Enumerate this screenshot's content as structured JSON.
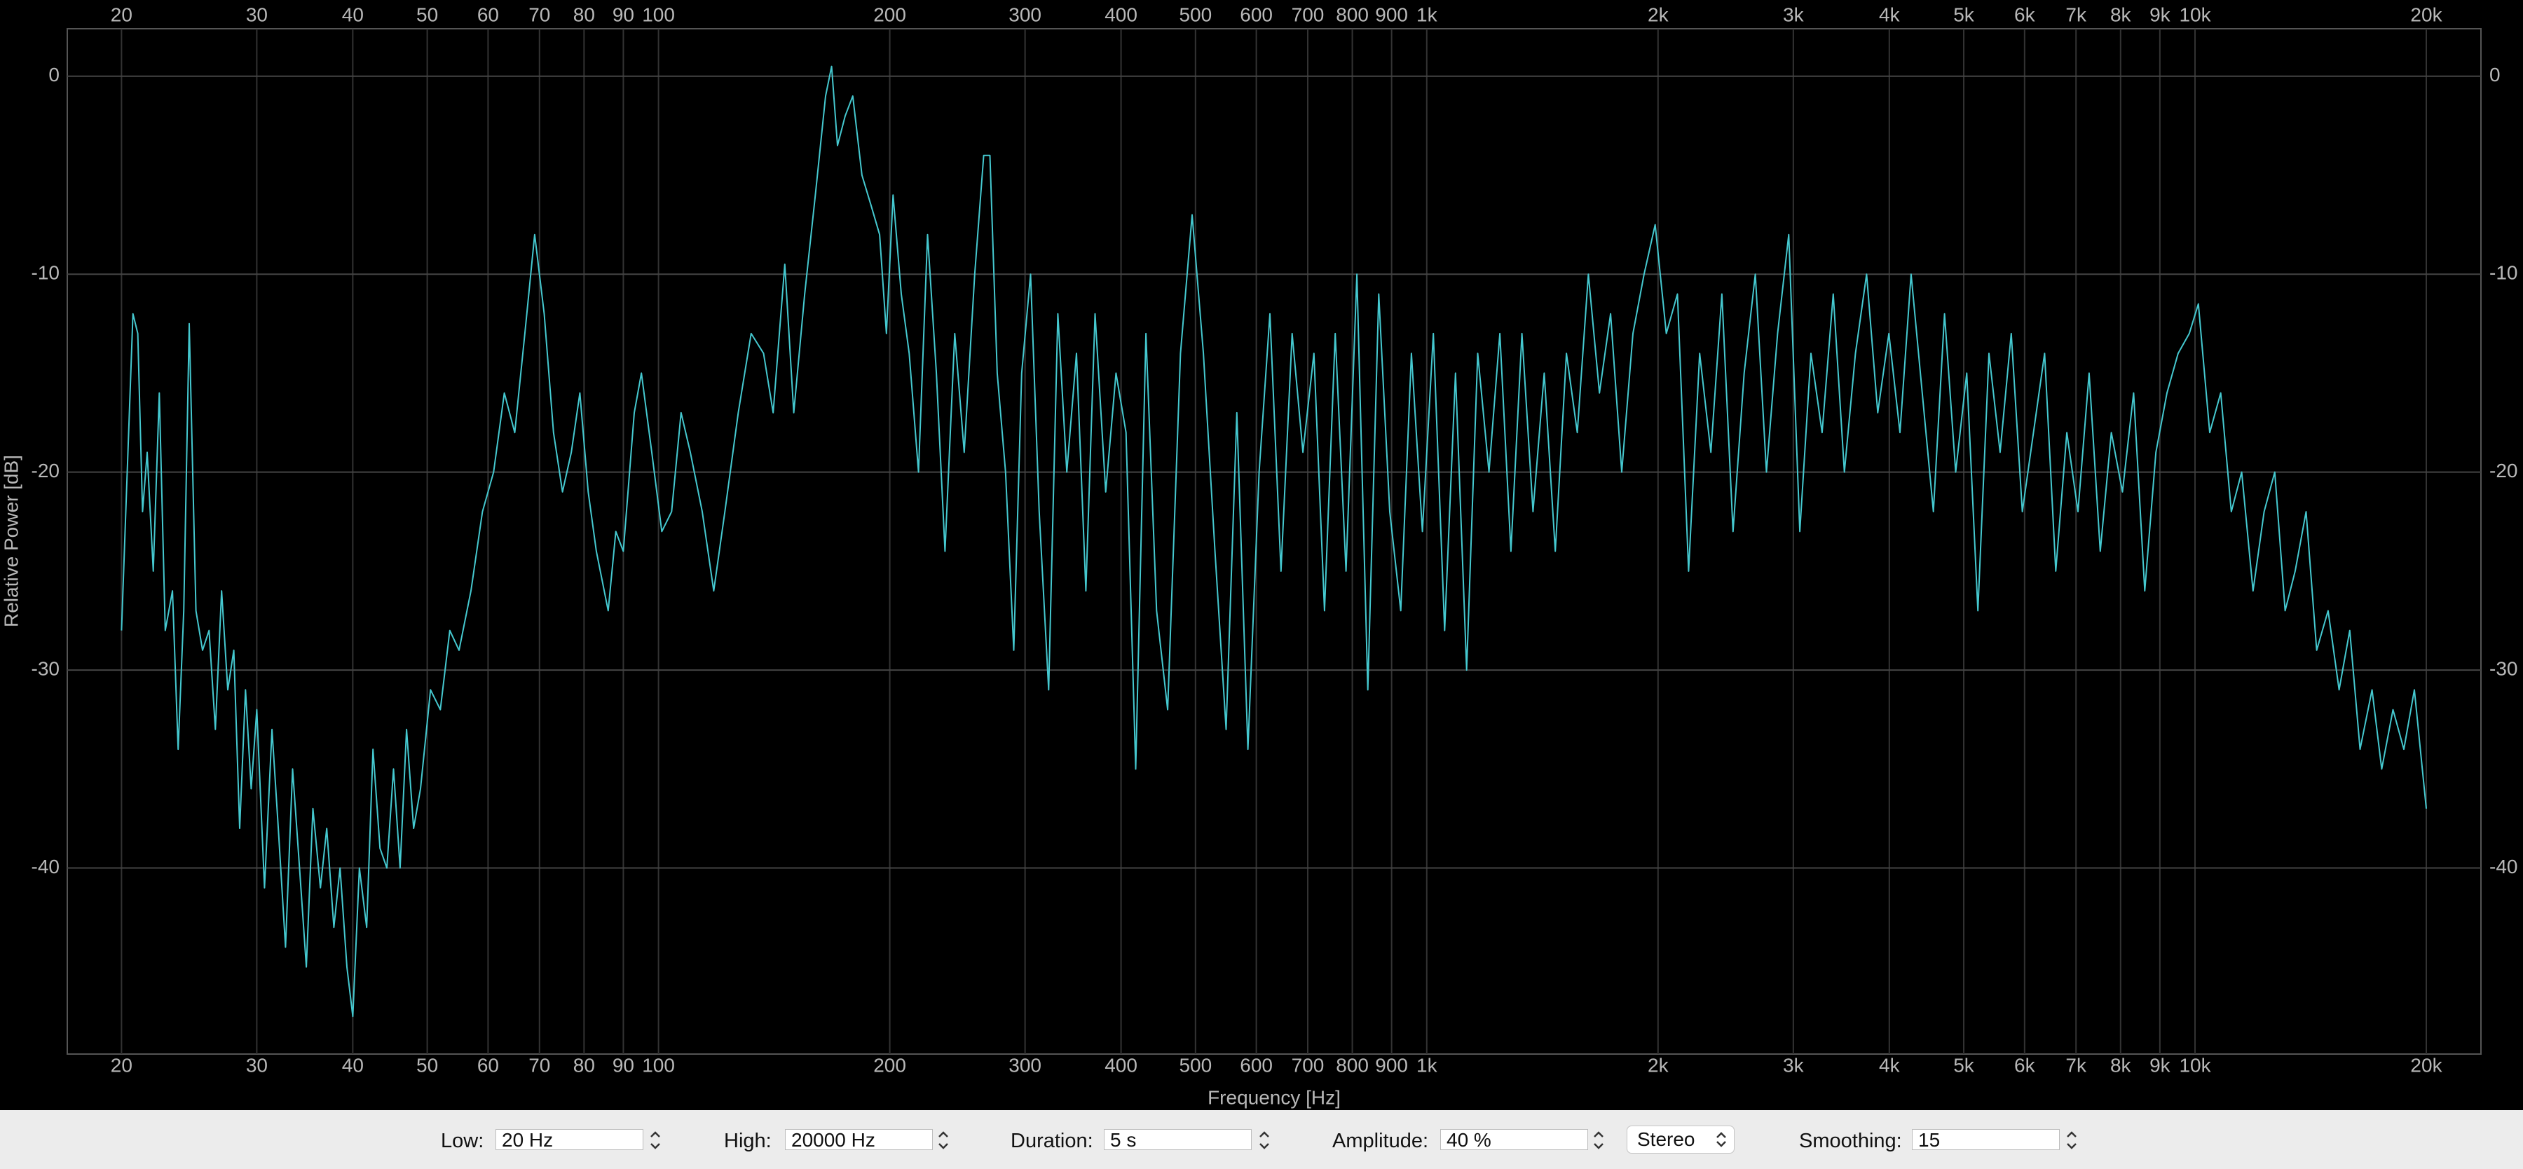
{
  "chart_data": {
    "type": "line",
    "x_label": "Frequency [Hz]",
    "y_label": "Relative Power [dB]",
    "xscale": "log",
    "grid": true,
    "color": "#45c8cf",
    "xlim": [
      17,
      23560
    ],
    "ylim": [
      -49.4,
      2.4
    ],
    "xticks": [
      20,
      30,
      40,
      50,
      60,
      70,
      80,
      90,
      100,
      200,
      300,
      400,
      500,
      600,
      700,
      800,
      900,
      {
        "value": 1000,
        "label": "1k"
      },
      {
        "value": 2000,
        "label": "2k"
      },
      {
        "value": 3000,
        "label": "3k"
      },
      {
        "value": 4000,
        "label": "4k"
      },
      {
        "value": 5000,
        "label": "5k"
      },
      {
        "value": 6000,
        "label": "6k"
      },
      {
        "value": 7000,
        "label": "7k"
      },
      {
        "value": 8000,
        "label": "8k"
      },
      {
        "value": 9000,
        "label": "9k"
      },
      {
        "value": 10000,
        "label": "10k"
      },
      {
        "value": 20000,
        "label": "20k"
      }
    ],
    "yticks": [
      0,
      -10,
      -20,
      -30,
      -40
    ],
    "x": [
      20,
      20.3,
      20.7,
      21,
      21.3,
      21.6,
      22,
      22.4,
      22.8,
      23.3,
      23.7,
      24.1,
      24.5,
      25,
      25.5,
      26,
      26.5,
      27,
      27.5,
      28,
      28.5,
      29,
      29.5,
      30,
      30.7,
      31.4,
      32,
      32.7,
      33.4,
      34.1,
      34.8,
      35.5,
      36.3,
      37,
      37.8,
      38.5,
      39.3,
      40,
      40.8,
      41.7,
      42.5,
      43.4,
      44.3,
      45.2,
      46.1,
      47,
      48,
      49,
      50.5,
      52,
      53.5,
      55,
      57,
      59,
      61,
      63,
      65,
      67,
      69,
      71,
      73,
      75,
      77,
      79,
      81,
      83,
      86,
      88,
      90,
      93,
      95,
      98,
      101,
      104,
      107,
      110,
      114,
      118,
      122,
      127,
      132,
      137,
      141,
      146,
      150,
      155,
      160,
      165,
      168,
      171,
      175,
      179,
      184,
      189,
      194,
      198,
      202,
      207,
      212,
      218,
      224,
      230,
      236,
      243,
      250,
      258,
      265,
      270,
      276,
      283,
      290,
      297,
      305,
      313,
      322,
      331,
      340,
      350,
      360,
      370,
      382,
      394,
      406,
      418,
      431,
      445,
      460,
      478,
      495,
      512,
      530,
      548,
      566,
      585,
      605,
      625,
      646,
      668,
      690,
      713,
      736,
      760,
      785,
      811,
      838,
      866,
      895,
      925,
      955,
      987,
      1020,
      1055,
      1090,
      1127,
      1165,
      1205,
      1245,
      1287,
      1330,
      1375,
      1422,
      1470,
      1520,
      1570,
      1623,
      1678,
      1735,
      1794,
      1855,
      1918,
      1983,
      2050,
      2120,
      2192,
      2266,
      2343,
      2422,
      2504,
      2589,
      2677,
      2768,
      2862,
      2959,
      3059,
      3163,
      3270,
      3381,
      3496,
      3614,
      3737,
      3864,
      3995,
      4130,
      4270,
      4415,
      4565,
      4720,
      4880,
      5045,
      5216,
      5393,
      5576,
      5765,
      5960,
      6162,
      6371,
      6587,
      6810,
      7041,
      7280,
      7527,
      7782,
      8046,
      8319,
      8601,
      8893,
      9194,
      9506,
      9828,
      10100,
      10450,
      10800,
      11150,
      11500,
      11900,
      12300,
      12700,
      13100,
      13500,
      13950,
      14400,
      14900,
      15400,
      15900,
      16400,
      17000,
      17500,
      18100,
      18700,
      19300,
      20000
    ],
    "values": [
      -28,
      -21,
      -12,
      -13,
      -22,
      -19,
      -25,
      -16,
      -28,
      -26,
      -34,
      -27,
      -12.5,
      -27,
      -29,
      -28,
      -33,
      -26,
      -31,
      -29,
      -38,
      -31,
      -36,
      -32,
      -41,
      -33,
      -38,
      -44,
      -35,
      -40,
      -45,
      -37,
      -41,
      -38,
      -43,
      -40,
      -45,
      -47.5,
      -40,
      -43,
      -34,
      -39,
      -40,
      -35,
      -40,
      -33,
      -38,
      -36,
      -31,
      -32,
      -28,
      -29,
      -26,
      -22,
      -20,
      -16,
      -18,
      -13,
      -8,
      -12,
      -18,
      -21,
      -19,
      -16,
      -21,
      -24,
      -27,
      -23,
      -24,
      -17,
      -15,
      -19,
      -23,
      -22,
      -17,
      -19,
      -22,
      -26,
      -22,
      -17,
      -13,
      -14,
      -17,
      -9.5,
      -17,
      -11,
      -6,
      -1,
      0.5,
      -3.5,
      -2,
      -1,
      -5,
      -6.5,
      -8,
      -13,
      -6,
      -11,
      -14,
      -20,
      -8,
      -15,
      -24,
      -13,
      -19,
      -10,
      -4,
      -4,
      -15,
      -20,
      -29,
      -15,
      -10,
      -22,
      -31,
      -12,
      -20,
      -14,
      -26,
      -12,
      -21,
      -15,
      -18,
      -35,
      -13,
      -27,
      -32,
      -14,
      -7,
      -14,
      -24,
      -33,
      -17,
      -34,
      -20,
      -12,
      -25,
      -13,
      -19,
      -14,
      -27,
      -13,
      -25,
      -10,
      -31,
      -11,
      -22,
      -27,
      -14,
      -23,
      -13,
      -28,
      -15,
      -30,
      -14,
      -20,
      -13,
      -24,
      -13,
      -22,
      -15,
      -24,
      -14,
      -18,
      -10,
      -16,
      -12,
      -20,
      -13,
      -10,
      -7.5,
      -13,
      -11,
      -25,
      -14,
      -19,
      -11,
      -23,
      -15,
      -10,
      -20,
      -13,
      -8,
      -23,
      -14,
      -18,
      -11,
      -20,
      -14,
      -10,
      -17,
      -13,
      -18,
      -10,
      -16,
      -22,
      -12,
      -20,
      -15,
      -27,
      -14,
      -19,
      -13,
      -22,
      -18,
      -14,
      -25,
      -18,
      -22,
      -15,
      -24,
      -18,
      -21,
      -16,
      -26,
      -19,
      -16,
      -14,
      -13,
      -11.5,
      -18,
      -16,
      -22,
      -20,
      -26,
      -22,
      -20,
      -27,
      -25,
      -22,
      -29,
      -27,
      -31,
      -28,
      -34,
      -31,
      -35,
      -32,
      -34,
      -31,
      -37
    ]
  },
  "controls": {
    "low": {
      "label": "Low:",
      "value": "20 Hz"
    },
    "high": {
      "label": "High:",
      "value": "20000 Hz"
    },
    "duration": {
      "label": "Duration:",
      "value": "5 s"
    },
    "amplitude": {
      "label": "Amplitude:",
      "value": "40 %"
    },
    "channels": "Stereo",
    "smoothing": {
      "label": "Smoothing:",
      "value": "15"
    }
  }
}
